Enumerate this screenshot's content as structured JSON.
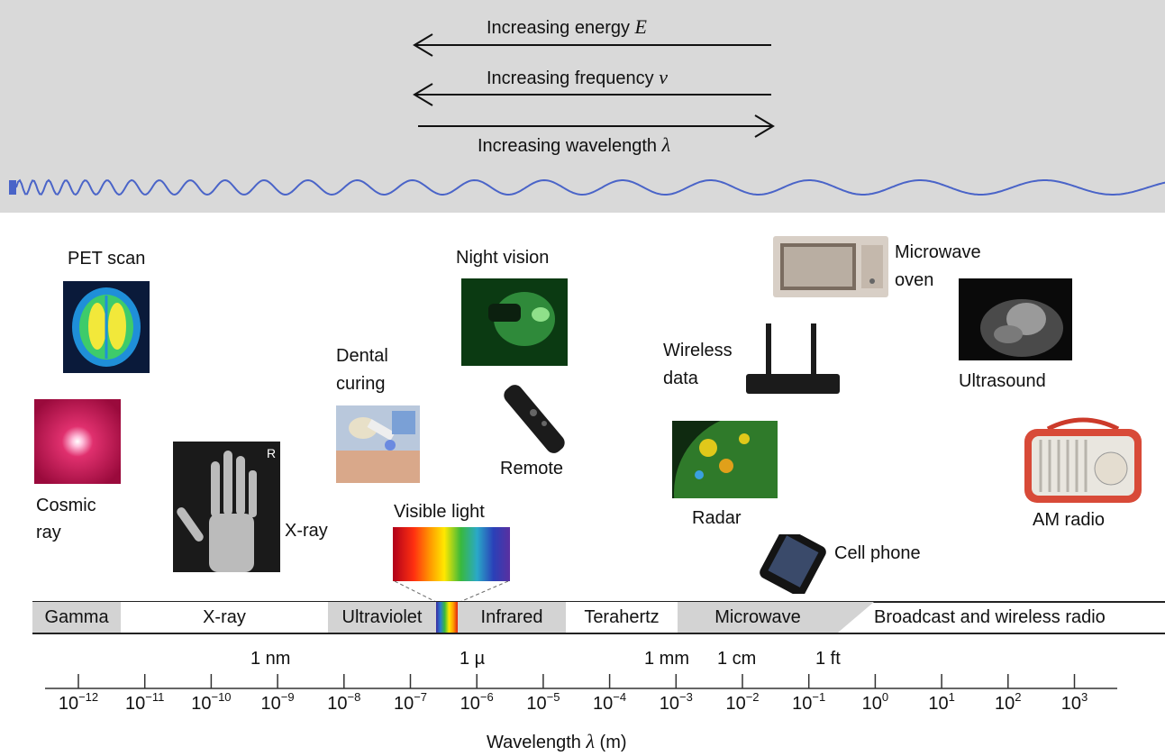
{
  "arrows": {
    "energy_label": "Increasing energy",
    "energy_symbol": "E",
    "frequency_label": "Increasing frequency",
    "frequency_symbol": "ν",
    "wavelength_label": "Increasing wavelength",
    "wavelength_symbol": "λ"
  },
  "wave_color": "#4a64c8",
  "applications": {
    "pet_scan": "PET  scan",
    "cosmic_ray_1": "Cosmic",
    "cosmic_ray_2": "ray",
    "xray": "X-ray",
    "dental_1": "Dental",
    "dental_2": "curing",
    "night_vision": "Night vision",
    "remote": "Remote",
    "visible_light": "Visible light",
    "microwave_oven_1": "Microwave",
    "microwave_oven_2": "oven",
    "wireless_1": "Wireless",
    "wireless_2": "data",
    "radar": "Radar",
    "cell_phone": "Cell phone",
    "ultrasound": "Ultrasound",
    "am_radio": "AM radio"
  },
  "bands": {
    "gamma": "Gamma",
    "xray": "X-ray",
    "ultraviolet": "Ultraviolet",
    "infrared": "Infrared",
    "terahertz": "Terahertz",
    "microwave": "Microwave",
    "radio": "Broadcast and wireless radio"
  },
  "units": {
    "nm": "1 nm",
    "micro": "1 µ",
    "mm": "1 mm",
    "cm": "1 cm",
    "ft": "1 ft"
  },
  "axis": {
    "base": "10",
    "exponents": [
      "−12",
      "−11",
      "−10",
      "−9",
      "−8",
      "−7",
      "−6",
      "−5",
      "−4",
      "−3",
      "−2",
      "−1",
      "0",
      "1",
      "2",
      "3"
    ],
    "title_prefix": "Wavelength",
    "title_symbol": "λ",
    "title_suffix": "(m)"
  }
}
